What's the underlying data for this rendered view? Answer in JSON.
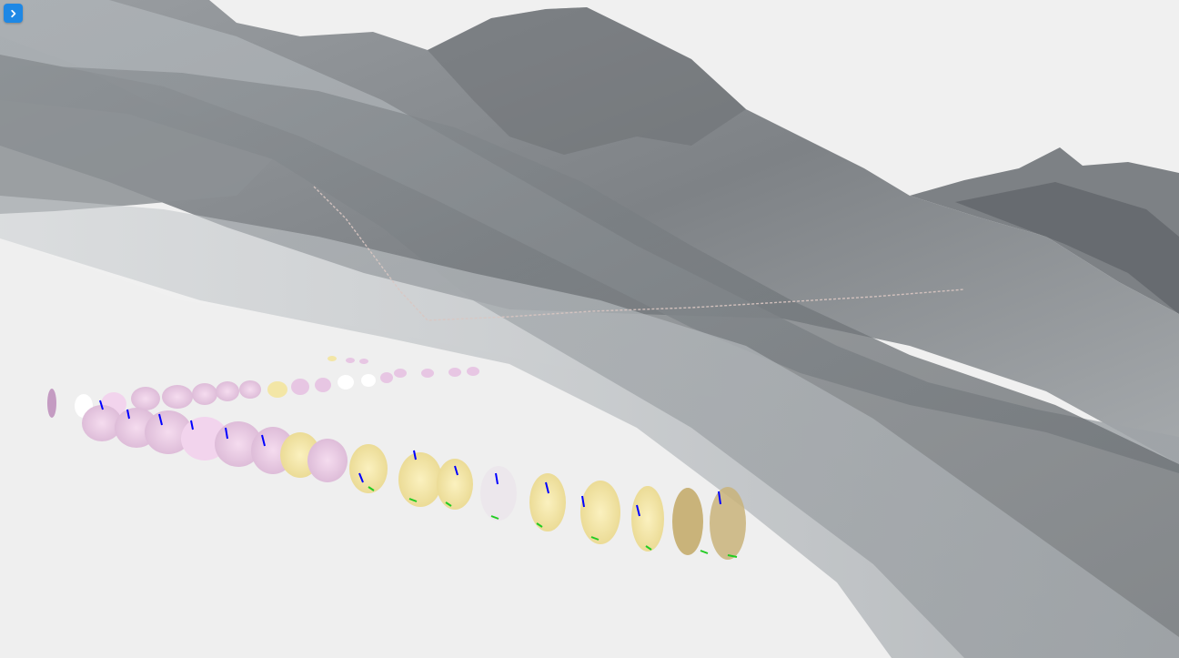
{
  "viewer": {
    "background_color": "#f0f0f0",
    "accent_color": "#1e88e5"
  },
  "toolbar": {
    "expand_icon": "chevron-right-icon"
  },
  "scene": {
    "terrain_colors": [
      "#8a8d90",
      "#6e7276",
      "#a9adb0",
      "#c8cbcd"
    ],
    "tunnel_ring_colors": [
      "#e7c6e3",
      "#f3e6a6",
      "#ffffff",
      "#d9a04a"
    ],
    "marker_colors": [
      "#0000ff",
      "#22cc22"
    ]
  }
}
